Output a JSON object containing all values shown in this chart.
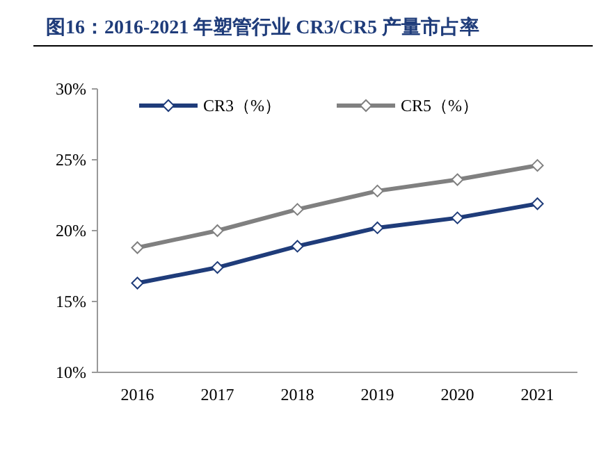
{
  "chart_data": {
    "type": "line",
    "title": "图16：2016-2021 年塑管行业 CR3/CR5 产量市占率",
    "categories": [
      "2016",
      "2017",
      "2018",
      "2019",
      "2020",
      "2021"
    ],
    "series": [
      {
        "name": "CR3（%）",
        "color": "#1f3c7a",
        "values": [
          16.3,
          17.4,
          18.9,
          20.2,
          20.9,
          21.9
        ]
      },
      {
        "name": "CR5（%）",
        "color": "#808080",
        "values": [
          18.8,
          20.0,
          21.5,
          22.8,
          23.6,
          24.6
        ]
      }
    ],
    "ylim": [
      10,
      30
    ],
    "yticks": [
      {
        "value": 10,
        "label": "10%"
      },
      {
        "value": 15,
        "label": "15%"
      },
      {
        "value": 20,
        "label": "20%"
      },
      {
        "value": 25,
        "label": "25%"
      },
      {
        "value": 30,
        "label": "30%"
      }
    ],
    "legend": "top",
    "grid": false,
    "marker": "diamond",
    "line_style": "solid"
  }
}
